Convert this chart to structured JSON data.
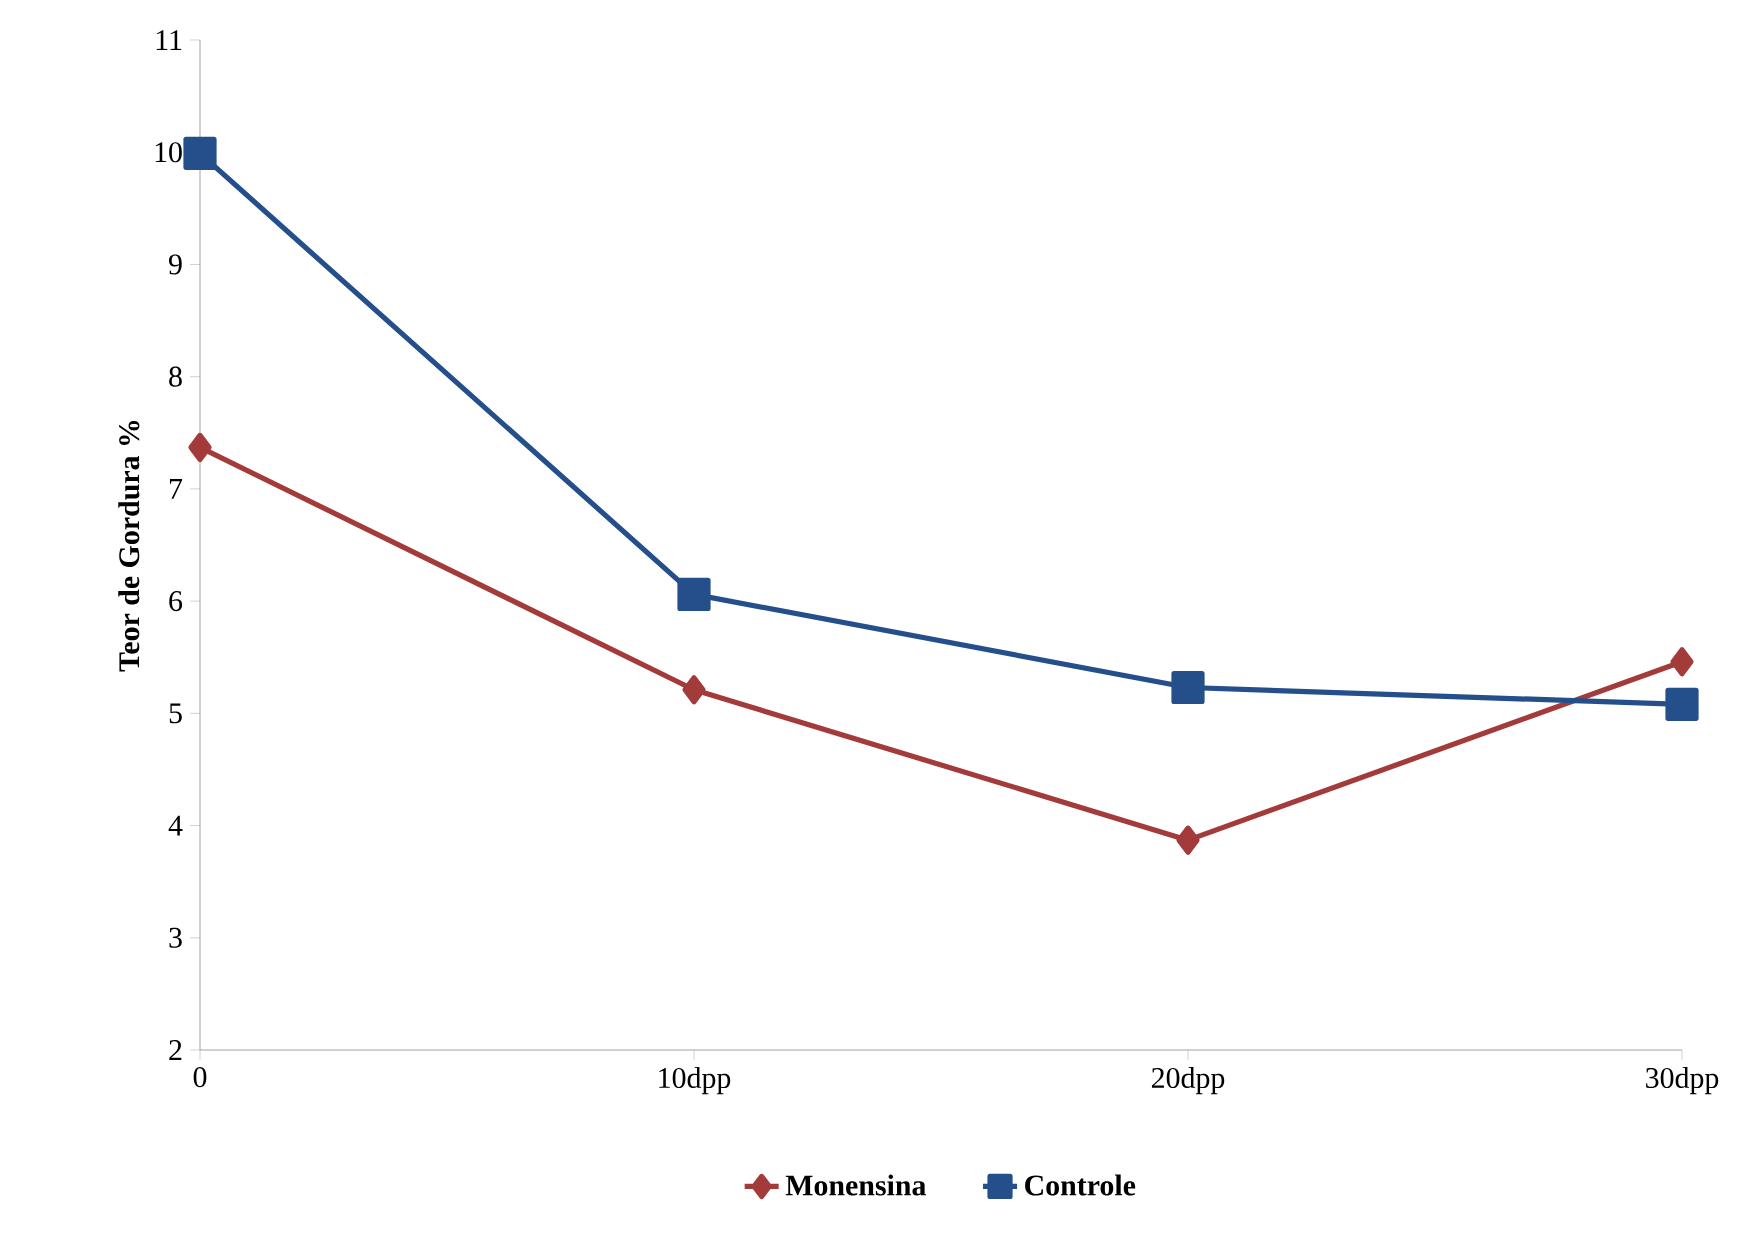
{
  "chart_data": {
    "type": "line",
    "ylabel": "Teor de Gordura %",
    "categories": [
      "0",
      "10dpp",
      "20dpp",
      "30dpp"
    ],
    "series": [
      {
        "name": "Monensina",
        "color": "#a33b3b",
        "marker": "diamond",
        "values": [
          7.37,
          5.21,
          3.87,
          5.46
        ]
      },
      {
        "name": "Controle",
        "color": "#254f8a",
        "marker": "square",
        "values": [
          9.99,
          6.06,
          5.23,
          5.08
        ]
      }
    ],
    "ylim": [
      2,
      11
    ],
    "yticks": [
      2,
      3,
      4,
      5,
      6,
      7,
      8,
      9,
      10,
      11
    ],
    "grid": false,
    "legend": "bottom",
    "line_style": "solid"
  }
}
